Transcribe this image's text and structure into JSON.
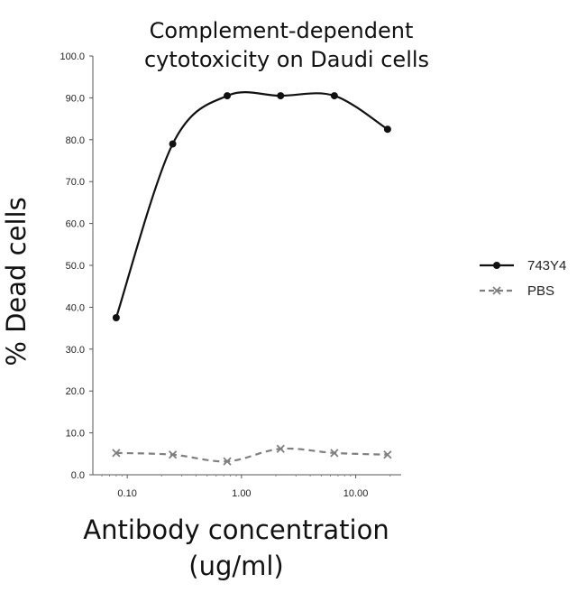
{
  "chart_data": {
    "type": "line",
    "title": [
      "Complement-dependent",
      "cytotoxicity on Daudi cells"
    ],
    "xlabel": [
      "Antibody concentration",
      "(ug/ml)"
    ],
    "ylabel": "% Dead cells",
    "x_scale": "log",
    "xlim": [
      0.05,
      25
    ],
    "ylim": [
      0,
      100
    ],
    "x_ticks": [
      {
        "value": 0.1,
        "label": "0.10"
      },
      {
        "value": 1,
        "label": "1.00"
      },
      {
        "value": 10,
        "label": "10.00"
      }
    ],
    "y_ticks": [
      {
        "value": 0,
        "label": "0.0"
      },
      {
        "value": 10,
        "label": "10.0"
      },
      {
        "value": 20,
        "label": "20.0"
      },
      {
        "value": 30,
        "label": "30.0"
      },
      {
        "value": 40,
        "label": "40.0"
      },
      {
        "value": 50,
        "label": "50.0"
      },
      {
        "value": 60,
        "label": "60.0"
      },
      {
        "value": 70,
        "label": "70.0"
      },
      {
        "value": 80,
        "label": "80.0"
      },
      {
        "value": 90,
        "label": "90.0"
      },
      {
        "value": 100,
        "label": "100.0"
      }
    ],
    "grid": false,
    "legend_position": "right",
    "series": [
      {
        "name": "743Y4",
        "style": "solid",
        "marker": "circle",
        "color": "#111111",
        "x": [
          0.08,
          0.25,
          0.75,
          2.2,
          6.5,
          19
        ],
        "y": [
          37.5,
          79.0,
          90.5,
          90.5,
          90.5,
          82.5
        ]
      },
      {
        "name": "PBS",
        "style": "dashed",
        "marker": "x",
        "color": "#7f7f7f",
        "x": [
          0.08,
          0.25,
          0.75,
          2.2,
          6.5,
          19
        ],
        "y": [
          5.2,
          4.8,
          3.2,
          6.2,
          5.2,
          4.8
        ]
      }
    ]
  }
}
